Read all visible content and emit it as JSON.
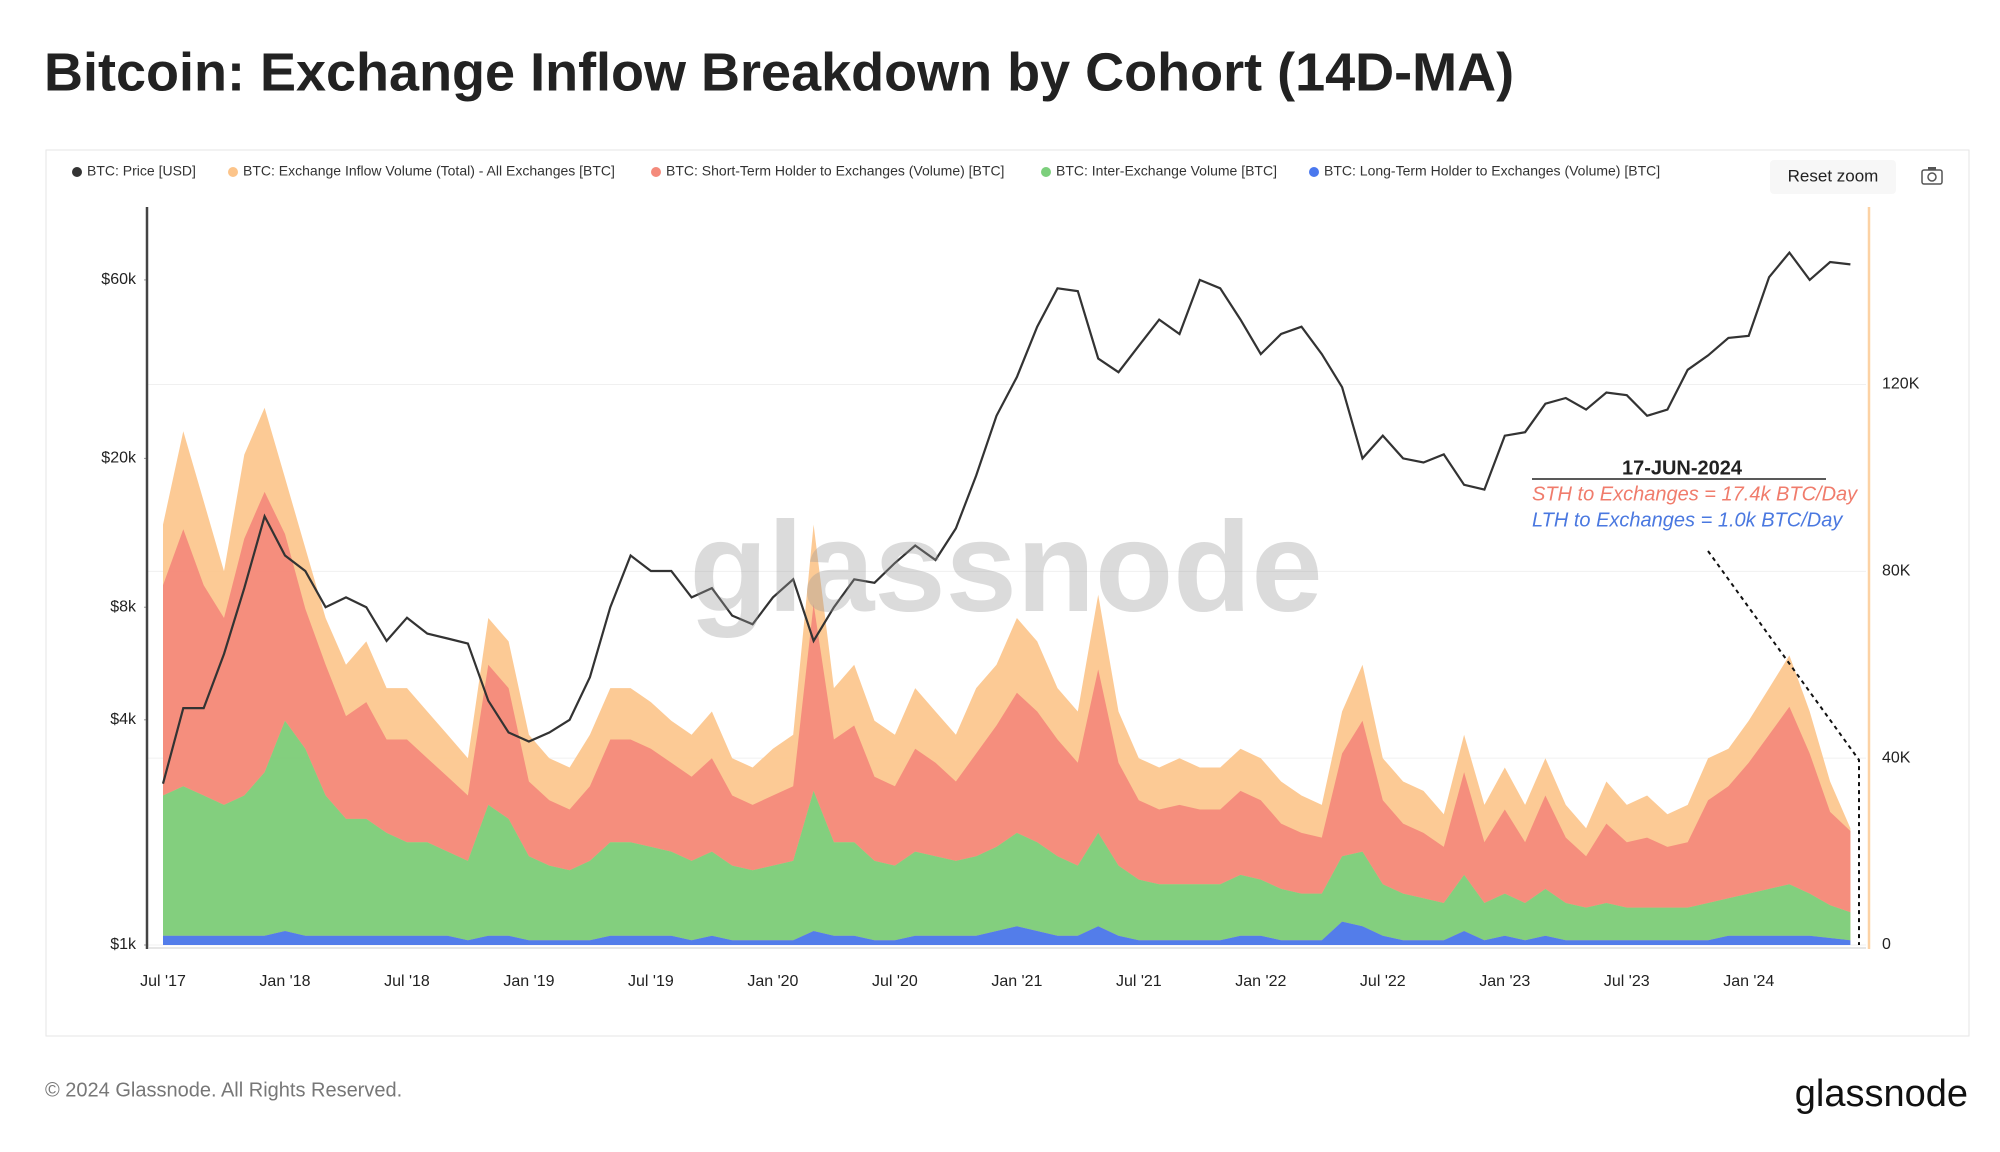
{
  "chart_data": {
    "type": "area",
    "title": "Bitcoin: Exchange Inflow Breakdown by Cohort (14D-MA)",
    "categories": [
      "Jul '17",
      null,
      null,
      null,
      null,
      null,
      "Jan '18",
      null,
      null,
      null,
      null,
      null,
      "Jul '18",
      null,
      null,
      null,
      null,
      null,
      "Jan '19",
      null,
      null,
      null,
      null,
      null,
      "Jul '19",
      null,
      null,
      null,
      null,
      null,
      "Jan '20",
      null,
      null,
      null,
      null,
      null,
      "Jul '20",
      null,
      null,
      null,
      null,
      null,
      "Jan '21",
      null,
      null,
      null,
      null,
      null,
      "Jul '21",
      null,
      null,
      null,
      null,
      null,
      "Jan '22",
      null,
      null,
      null,
      null,
      null,
      "Jul '22",
      null,
      null,
      null,
      null,
      null,
      "Jan '23",
      null,
      null,
      null,
      null,
      null,
      "Jul '23",
      null,
      null,
      null,
      null,
      null,
      "Jan '24",
      null,
      null,
      null,
      null,
      null
    ],
    "series": [
      {
        "name": "BTC: Price [USD]",
        "type": "line",
        "axis": "y",
        "color": "#333333",
        "values": [
          2700,
          4300,
          4300,
          6000,
          9000,
          14000,
          11000,
          10000,
          8000,
          8500,
          8000,
          6500,
          7500,
          6800,
          6600,
          6400,
          4500,
          3700,
          3500,
          3700,
          4000,
          5200,
          8000,
          11000,
          10000,
          10000,
          8500,
          9000,
          7600,
          7200,
          8500,
          9500,
          6500,
          8000,
          9500,
          9300,
          10500,
          11700,
          10700,
          13000,
          18000,
          26000,
          33000,
          45000,
          57000,
          56000,
          37000,
          34000,
          40000,
          47000,
          43000,
          60000,
          57000,
          47000,
          38000,
          43000,
          45000,
          38000,
          31000,
          20000,
          23000,
          20000,
          19500,
          20500,
          17000,
          16500,
          23000,
          23500,
          28000,
          29000,
          27000,
          30000,
          29500,
          26000,
          27000,
          34500,
          37700,
          42000,
          42500,
          61000,
          71000,
          60000,
          67000,
          66000
        ]
      },
      {
        "name": "BTC: Exchange Inflow Volume (Total) - All Exchanges [BTC]",
        "type": "area",
        "axis": "y2",
        "color": "#fcc48a",
        "values": [
          90000,
          110000,
          95000,
          80000,
          105000,
          115000,
          100000,
          85000,
          70000,
          60000,
          65000,
          55000,
          55000,
          50000,
          45000,
          40000,
          70000,
          65000,
          45000,
          40000,
          38000,
          45000,
          55000,
          55000,
          52000,
          48000,
          45000,
          50000,
          40000,
          38000,
          42000,
          45000,
          90000,
          55000,
          60000,
          48000,
          45000,
          55000,
          50000,
          45000,
          55000,
          60000,
          70000,
          65000,
          55000,
          50000,
          75000,
          50000,
          40000,
          38000,
          40000,
          38000,
          38000,
          42000,
          40000,
          35000,
          32000,
          30000,
          50000,
          60000,
          40000,
          35000,
          33000,
          28000,
          45000,
          30000,
          38000,
          30000,
          40000,
          30000,
          25000,
          35000,
          30000,
          32000,
          28000,
          30000,
          40000,
          42000,
          48000,
          55000,
          62000,
          50000,
          35000,
          25000
        ]
      },
      {
        "name": "BTC: Short-Term Holder to Exchanges (Volume) [BTC]",
        "type": "stacked_area",
        "axis": "y2",
        "color": "#f48a7b",
        "values": [
          45000,
          55000,
          45000,
          40000,
          55000,
          60000,
          40000,
          30000,
          28000,
          22000,
          25000,
          20000,
          22000,
          18000,
          16000,
          14000,
          30000,
          28000,
          16000,
          14000,
          13000,
          16000,
          22000,
          22000,
          21000,
          19000,
          18000,
          20000,
          15000,
          14000,
          15000,
          16000,
          40000,
          22000,
          25000,
          18000,
          17000,
          22000,
          20000,
          17000,
          22000,
          26000,
          30000,
          28000,
          25000,
          22000,
          35000,
          22000,
          17000,
          16000,
          17000,
          16000,
          16000,
          18000,
          17000,
          14000,
          13000,
          12000,
          22000,
          28000,
          18000,
          15000,
          14000,
          12000,
          22000,
          13000,
          18000,
          13000,
          20000,
          14000,
          11000,
          17000,
          14000,
          15000,
          13000,
          14000,
          22000,
          24000,
          28000,
          33000,
          38000,
          30000,
          20000,
          17400
        ]
      },
      {
        "name": "BTC: Inter-Exchange Volume [BTC]",
        "type": "stacked_area",
        "axis": "y2",
        "color": "#7ccf7c",
        "values": [
          30000,
          32000,
          30000,
          28000,
          30000,
          35000,
          45000,
          40000,
          30000,
          25000,
          25000,
          22000,
          20000,
          20000,
          18000,
          17000,
          28000,
          25000,
          18000,
          16000,
          15000,
          17000,
          20000,
          20000,
          19000,
          18000,
          17000,
          18000,
          16000,
          15000,
          16000,
          17000,
          30000,
          20000,
          20000,
          17000,
          16000,
          18000,
          17000,
          16000,
          17000,
          18000,
          20000,
          19000,
          17000,
          15000,
          20000,
          15000,
          13000,
          12000,
          12000,
          12000,
          12000,
          13000,
          12000,
          11000,
          10000,
          10000,
          14000,
          16000,
          11000,
          10000,
          9000,
          8000,
          12000,
          8000,
          9000,
          8000,
          10000,
          8000,
          7000,
          8000,
          7000,
          7000,
          7000,
          7000,
          8000,
          8000,
          9000,
          10000,
          11000,
          9000,
          7000,
          6000
        ]
      },
      {
        "name": "BTC: Long-Term Holder to Exchanges (Volume) [BTC]",
        "type": "stacked_area",
        "axis": "y2",
        "color": "#4a78ee",
        "values": [
          2000,
          2000,
          2000,
          2000,
          2000,
          2000,
          3000,
          2000,
          2000,
          2000,
          2000,
          2000,
          2000,
          2000,
          2000,
          1000,
          2000,
          2000,
          1000,
          1000,
          1000,
          1000,
          2000,
          2000,
          2000,
          2000,
          1000,
          2000,
          1000,
          1000,
          1000,
          1000,
          3000,
          2000,
          2000,
          1000,
          1000,
          2000,
          2000,
          2000,
          2000,
          3000,
          4000,
          3000,
          2000,
          2000,
          4000,
          2000,
          1000,
          1000,
          1000,
          1000,
          1000,
          2000,
          2000,
          1000,
          1000,
          1000,
          5000,
          4000,
          2000,
          1000,
          1000,
          1000,
          3000,
          1000,
          2000,
          1000,
          2000,
          1000,
          1000,
          1000,
          1000,
          1000,
          1000,
          1000,
          1000,
          2000,
          2000,
          2000,
          2000,
          2000,
          1500,
          1000
        ]
      }
    ],
    "yscale": "log",
    "ylim": [
      1000,
      94000
    ],
    "yticks": [
      {
        "value": 1000,
        "label": "$1k"
      },
      {
        "value": 4000,
        "label": "$4k"
      },
      {
        "value": 8000,
        "label": "$8k"
      },
      {
        "value": 20000,
        "label": "$20k"
      },
      {
        "value": 60000,
        "label": "$60k"
      }
    ],
    "y2lim": [
      0,
      158000
    ],
    "y2ticks": [
      0,
      {
        "value": 40000,
        "label": "40K"
      },
      {
        "value": 80000,
        "label": "80K"
      },
      {
        "value": 120000,
        "label": "120K"
      }
    ],
    "grid": true,
    "legend": "top",
    "annotation": {
      "date": "17-JUN-2024",
      "sth": "STH to Exchanges = 17.4k BTC/Day",
      "lth": "LTH to Exchanges = 1.0k BTC/Day"
    }
  },
  "page": {
    "reset_zoom": "Reset zoom",
    "watermark": "glassnode",
    "copyright": "© 2024 Glassnode. All Rights Reserved.",
    "logo": "glassnode"
  }
}
